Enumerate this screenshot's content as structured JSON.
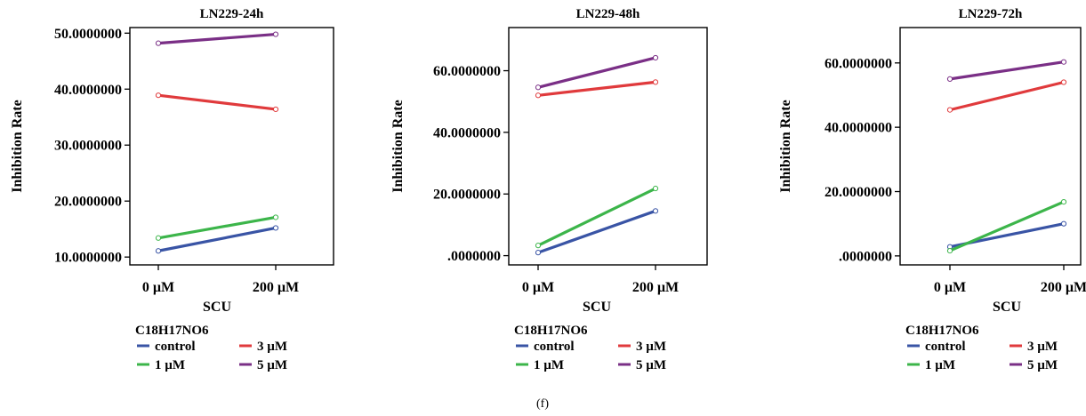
{
  "figure_label": "(f)",
  "colors": {
    "control": "#3954a5",
    "3 µM": "#e03a3c",
    "1 µM": "#3cb54a",
    "5 µM": "#7a2f86",
    "axis": "#000000"
  },
  "chart_data": [
    {
      "type": "line",
      "title": "LN229-24h",
      "xlabel": "SCU",
      "ylabel": "Inhibition Rate",
      "categories": [
        "0 µM",
        "200 µM"
      ],
      "ylim": [
        8.6,
        51.0
      ],
      "yticks": [
        10,
        20,
        30,
        40,
        50
      ],
      "ytick_labels": [
        "10.0000000",
        "20.0000000",
        "30.0000000",
        "40.0000000",
        "50.0000000"
      ],
      "legend_title": "C18H17NO6",
      "series": [
        {
          "name": "control",
          "values": [
            11.1,
            15.2
          ]
        },
        {
          "name": "3 µM",
          "values": [
            38.9,
            36.4
          ]
        },
        {
          "name": "1 µM",
          "values": [
            13.4,
            17.1
          ]
        },
        {
          "name": "5 µM",
          "values": [
            48.2,
            49.8
          ]
        }
      ]
    },
    {
      "type": "line",
      "title": "LN229-48h",
      "xlabel": "SCU",
      "ylabel": "Inhibition Rate",
      "categories": [
        "0 µM",
        "200 µM"
      ],
      "ylim": [
        -3.0,
        74.0
      ],
      "yticks": [
        0,
        20,
        40,
        60
      ],
      "ytick_labels": [
        ".0000000",
        "20.0000000",
        "40.0000000",
        "60.0000000"
      ],
      "legend_title": "C18H17NO6",
      "series": [
        {
          "name": "control",
          "values": [
            1.0,
            14.5
          ]
        },
        {
          "name": "3 µM",
          "values": [
            52.0,
            56.3
          ]
        },
        {
          "name": "1 µM",
          "values": [
            3.3,
            21.8
          ]
        },
        {
          "name": "5 µM",
          "values": [
            54.6,
            64.2
          ]
        }
      ]
    },
    {
      "type": "line",
      "title": "LN229-72h",
      "xlabel": "SCU",
      "ylabel": "Inhibition Rate",
      "categories": [
        "0 µM",
        "200 µM"
      ],
      "ylim": [
        -2.8,
        71.0
      ],
      "yticks": [
        0,
        20,
        40,
        60
      ],
      "ytick_labels": [
        ".0000000",
        "20.0000000",
        "40.0000000",
        "60.0000000"
      ],
      "legend_title": "C18H17NO6",
      "series": [
        {
          "name": "control",
          "values": [
            2.8,
            10.0
          ]
        },
        {
          "name": "3 µM",
          "values": [
            45.4,
            54.0
          ]
        },
        {
          "name": "1 µM",
          "values": [
            1.6,
            16.8
          ]
        },
        {
          "name": "5 µM",
          "values": [
            55.0,
            60.3
          ]
        }
      ]
    }
  ]
}
